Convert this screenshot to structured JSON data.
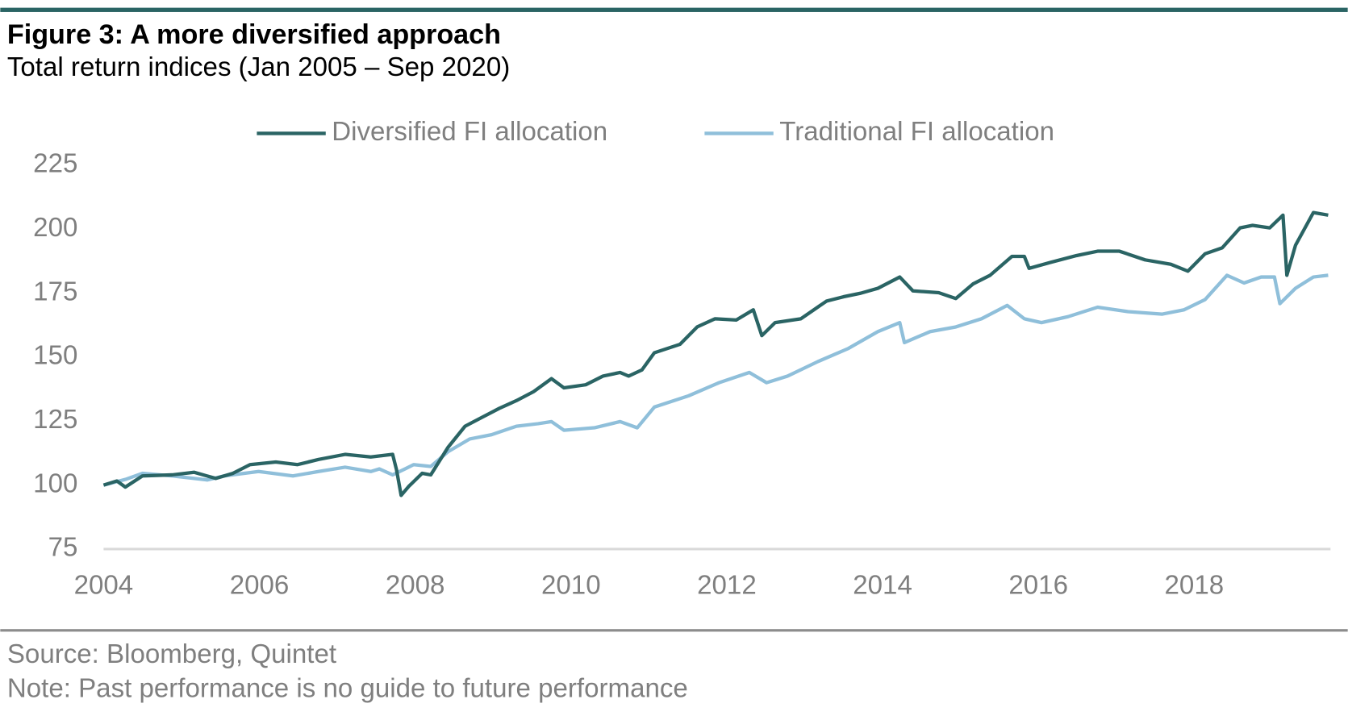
{
  "chart_data": {
    "type": "line",
    "title": "Figure 3: A more diversified approach",
    "subtitle": "Total return indices (Jan 2005 – Sep 2020)",
    "source": "Source: Bloomberg, Quintet",
    "note": "Note: Past performance is no guide to future performance",
    "xlim": [
      2004,
      2019.75
    ],
    "xticks": [
      2004,
      2006,
      2008,
      2010,
      2012,
      2014,
      2016,
      2018
    ],
    "ylim": [
      75,
      225
    ],
    "yticks": [
      75,
      100,
      125,
      150,
      175,
      200,
      225
    ],
    "grid": false,
    "legend": "top",
    "series": [
      {
        "name": "Diversified FI allocation",
        "color": "#2a6464",
        "x": [
          2004.0,
          2004.17,
          2004.28,
          2004.5,
          2004.88,
          2005.16,
          2005.44,
          2005.66,
          2005.88,
          2006.21,
          2006.49,
          2006.76,
          2007.1,
          2007.43,
          2007.71,
          2007.76,
          2007.82,
          2007.92,
          2008.09,
          2008.2,
          2008.42,
          2008.64,
          2008.86,
          2009.08,
          2009.3,
          2009.52,
          2009.75,
          2009.91,
          2010.19,
          2010.41,
          2010.63,
          2010.74,
          2010.91,
          2011.07,
          2011.4,
          2011.62,
          2011.85,
          2012.12,
          2012.34,
          2012.45,
          2012.62,
          2012.95,
          2013.28,
          2013.5,
          2013.72,
          2013.94,
          2014.22,
          2014.39,
          2014.72,
          2014.94,
          2015.16,
          2015.38,
          2015.66,
          2015.82,
          2015.88,
          2016.15,
          2016.49,
          2016.76,
          2017.04,
          2017.37,
          2017.7,
          2017.92,
          2018.14,
          2018.36,
          2018.59,
          2018.75,
          2018.97,
          2019.14,
          2019.19,
          2019.3,
          2019.53,
          2019.72
        ],
        "values": [
          100,
          101.6,
          99.2,
          103.6,
          104,
          105,
          102.6,
          104.6,
          108,
          109,
          108,
          110,
          112,
          111,
          112,
          106,
          96,
          99.6,
          104.6,
          104,
          114.7,
          123,
          126.5,
          130,
          133,
          136.5,
          141.6,
          138,
          139.2,
          142.6,
          144,
          142.6,
          145,
          151.7,
          155,
          161.8,
          165,
          164.5,
          168.5,
          158.4,
          163.5,
          165,
          171.9,
          173.6,
          175,
          176.9,
          181.3,
          175.9,
          175.2,
          172.9,
          178.6,
          182,
          189.4,
          189.4,
          184.7,
          187,
          189.7,
          191.4,
          191.4,
          188,
          186.3,
          183.6,
          190.4,
          192.7,
          200.5,
          201.5,
          200.5,
          205.5,
          182,
          193.7,
          206.5,
          205.5
        ]
      },
      {
        "name": "Traditional FI allocation",
        "color": "#8fbfda",
        "x": [
          2004.0,
          2004.28,
          2004.5,
          2004.88,
          2005.33,
          2005.55,
          2005.99,
          2006.43,
          2006.76,
          2007.1,
          2007.43,
          2007.54,
          2007.71,
          2007.87,
          2007.98,
          2008.2,
          2008.42,
          2008.7,
          2008.98,
          2009.3,
          2009.58,
          2009.75,
          2009.91,
          2010.3,
          2010.63,
          2010.85,
          2011.07,
          2011.51,
          2011.9,
          2012.29,
          2012.51,
          2012.78,
          2013.17,
          2013.56,
          2013.94,
          2014.22,
          2014.28,
          2014.61,
          2014.94,
          2015.27,
          2015.6,
          2015.82,
          2016.04,
          2016.38,
          2016.76,
          2017.15,
          2017.59,
          2017.87,
          2018.14,
          2018.42,
          2018.64,
          2018.86,
          2019.03,
          2019.1,
          2019.3,
          2019.53,
          2019.72
        ],
        "values": [
          100,
          102.2,
          104.6,
          103.6,
          102,
          103.6,
          105.3,
          103.6,
          105.3,
          107,
          105.3,
          106.3,
          104,
          106.3,
          108,
          107.3,
          113,
          118,
          119.7,
          123,
          124,
          124.8,
          121.4,
          122.4,
          124.8,
          122.4,
          130.5,
          134.9,
          140,
          144,
          140,
          142.6,
          148.3,
          153.4,
          160,
          163.5,
          155.7,
          160,
          161.8,
          165,
          170.2,
          165,
          163.5,
          165.8,
          169.5,
          167.8,
          166.8,
          168.5,
          172.5,
          182,
          179,
          181.3,
          181.3,
          170.9,
          176.9,
          181.3,
          182
        ]
      }
    ]
  }
}
